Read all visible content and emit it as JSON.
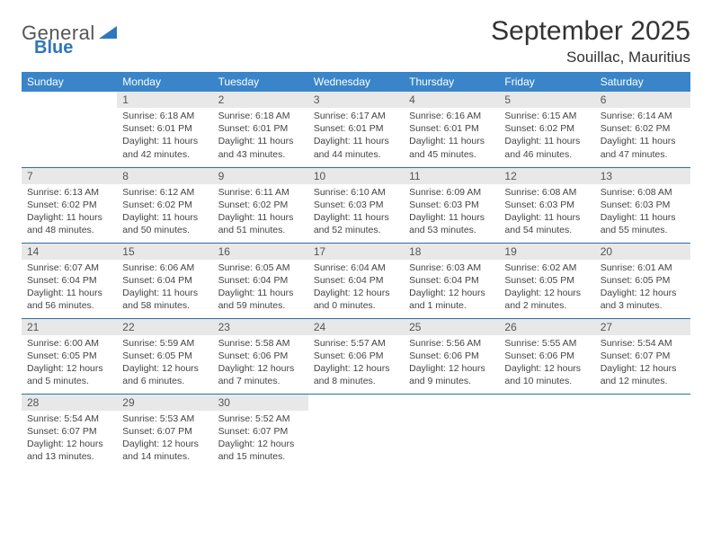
{
  "brand": {
    "part1": "General",
    "part2": "Blue"
  },
  "title": "September 2025",
  "location": "Souillac, Mauritius",
  "colors": {
    "header_bg": "#3a85c9",
    "header_text": "#ffffff",
    "daynum_bg": "#e8e8e8",
    "row_divider": "#2f6fa8",
    "brand_blue": "#2f77bb",
    "text": "#333333"
  },
  "day_headers": [
    "Sunday",
    "Monday",
    "Tuesday",
    "Wednesday",
    "Thursday",
    "Friday",
    "Saturday"
  ],
  "weeks": [
    [
      null,
      {
        "d": "1",
        "sr": "Sunrise: 6:18 AM",
        "ss": "Sunset: 6:01 PM",
        "dl1": "Daylight: 11 hours",
        "dl2": "and 42 minutes."
      },
      {
        "d": "2",
        "sr": "Sunrise: 6:18 AM",
        "ss": "Sunset: 6:01 PM",
        "dl1": "Daylight: 11 hours",
        "dl2": "and 43 minutes."
      },
      {
        "d": "3",
        "sr": "Sunrise: 6:17 AM",
        "ss": "Sunset: 6:01 PM",
        "dl1": "Daylight: 11 hours",
        "dl2": "and 44 minutes."
      },
      {
        "d": "4",
        "sr": "Sunrise: 6:16 AM",
        "ss": "Sunset: 6:01 PM",
        "dl1": "Daylight: 11 hours",
        "dl2": "and 45 minutes."
      },
      {
        "d": "5",
        "sr": "Sunrise: 6:15 AM",
        "ss": "Sunset: 6:02 PM",
        "dl1": "Daylight: 11 hours",
        "dl2": "and 46 minutes."
      },
      {
        "d": "6",
        "sr": "Sunrise: 6:14 AM",
        "ss": "Sunset: 6:02 PM",
        "dl1": "Daylight: 11 hours",
        "dl2": "and 47 minutes."
      }
    ],
    [
      {
        "d": "7",
        "sr": "Sunrise: 6:13 AM",
        "ss": "Sunset: 6:02 PM",
        "dl1": "Daylight: 11 hours",
        "dl2": "and 48 minutes."
      },
      {
        "d": "8",
        "sr": "Sunrise: 6:12 AM",
        "ss": "Sunset: 6:02 PM",
        "dl1": "Daylight: 11 hours",
        "dl2": "and 50 minutes."
      },
      {
        "d": "9",
        "sr": "Sunrise: 6:11 AM",
        "ss": "Sunset: 6:02 PM",
        "dl1": "Daylight: 11 hours",
        "dl2": "and 51 minutes."
      },
      {
        "d": "10",
        "sr": "Sunrise: 6:10 AM",
        "ss": "Sunset: 6:03 PM",
        "dl1": "Daylight: 11 hours",
        "dl2": "and 52 minutes."
      },
      {
        "d": "11",
        "sr": "Sunrise: 6:09 AM",
        "ss": "Sunset: 6:03 PM",
        "dl1": "Daylight: 11 hours",
        "dl2": "and 53 minutes."
      },
      {
        "d": "12",
        "sr": "Sunrise: 6:08 AM",
        "ss": "Sunset: 6:03 PM",
        "dl1": "Daylight: 11 hours",
        "dl2": "and 54 minutes."
      },
      {
        "d": "13",
        "sr": "Sunrise: 6:08 AM",
        "ss": "Sunset: 6:03 PM",
        "dl1": "Daylight: 11 hours",
        "dl2": "and 55 minutes."
      }
    ],
    [
      {
        "d": "14",
        "sr": "Sunrise: 6:07 AM",
        "ss": "Sunset: 6:04 PM",
        "dl1": "Daylight: 11 hours",
        "dl2": "and 56 minutes."
      },
      {
        "d": "15",
        "sr": "Sunrise: 6:06 AM",
        "ss": "Sunset: 6:04 PM",
        "dl1": "Daylight: 11 hours",
        "dl2": "and 58 minutes."
      },
      {
        "d": "16",
        "sr": "Sunrise: 6:05 AM",
        "ss": "Sunset: 6:04 PM",
        "dl1": "Daylight: 11 hours",
        "dl2": "and 59 minutes."
      },
      {
        "d": "17",
        "sr": "Sunrise: 6:04 AM",
        "ss": "Sunset: 6:04 PM",
        "dl1": "Daylight: 12 hours",
        "dl2": "and 0 minutes."
      },
      {
        "d": "18",
        "sr": "Sunrise: 6:03 AM",
        "ss": "Sunset: 6:04 PM",
        "dl1": "Daylight: 12 hours",
        "dl2": "and 1 minute."
      },
      {
        "d": "19",
        "sr": "Sunrise: 6:02 AM",
        "ss": "Sunset: 6:05 PM",
        "dl1": "Daylight: 12 hours",
        "dl2": "and 2 minutes."
      },
      {
        "d": "20",
        "sr": "Sunrise: 6:01 AM",
        "ss": "Sunset: 6:05 PM",
        "dl1": "Daylight: 12 hours",
        "dl2": "and 3 minutes."
      }
    ],
    [
      {
        "d": "21",
        "sr": "Sunrise: 6:00 AM",
        "ss": "Sunset: 6:05 PM",
        "dl1": "Daylight: 12 hours",
        "dl2": "and 5 minutes."
      },
      {
        "d": "22",
        "sr": "Sunrise: 5:59 AM",
        "ss": "Sunset: 6:05 PM",
        "dl1": "Daylight: 12 hours",
        "dl2": "and 6 minutes."
      },
      {
        "d": "23",
        "sr": "Sunrise: 5:58 AM",
        "ss": "Sunset: 6:06 PM",
        "dl1": "Daylight: 12 hours",
        "dl2": "and 7 minutes."
      },
      {
        "d": "24",
        "sr": "Sunrise: 5:57 AM",
        "ss": "Sunset: 6:06 PM",
        "dl1": "Daylight: 12 hours",
        "dl2": "and 8 minutes."
      },
      {
        "d": "25",
        "sr": "Sunrise: 5:56 AM",
        "ss": "Sunset: 6:06 PM",
        "dl1": "Daylight: 12 hours",
        "dl2": "and 9 minutes."
      },
      {
        "d": "26",
        "sr": "Sunrise: 5:55 AM",
        "ss": "Sunset: 6:06 PM",
        "dl1": "Daylight: 12 hours",
        "dl2": "and 10 minutes."
      },
      {
        "d": "27",
        "sr": "Sunrise: 5:54 AM",
        "ss": "Sunset: 6:07 PM",
        "dl1": "Daylight: 12 hours",
        "dl2": "and 12 minutes."
      }
    ],
    [
      {
        "d": "28",
        "sr": "Sunrise: 5:54 AM",
        "ss": "Sunset: 6:07 PM",
        "dl1": "Daylight: 12 hours",
        "dl2": "and 13 minutes."
      },
      {
        "d": "29",
        "sr": "Sunrise: 5:53 AM",
        "ss": "Sunset: 6:07 PM",
        "dl1": "Daylight: 12 hours",
        "dl2": "and 14 minutes."
      },
      {
        "d": "30",
        "sr": "Sunrise: 5:52 AM",
        "ss": "Sunset: 6:07 PM",
        "dl1": "Daylight: 12 hours",
        "dl2": "and 15 minutes."
      },
      null,
      null,
      null,
      null
    ]
  ]
}
